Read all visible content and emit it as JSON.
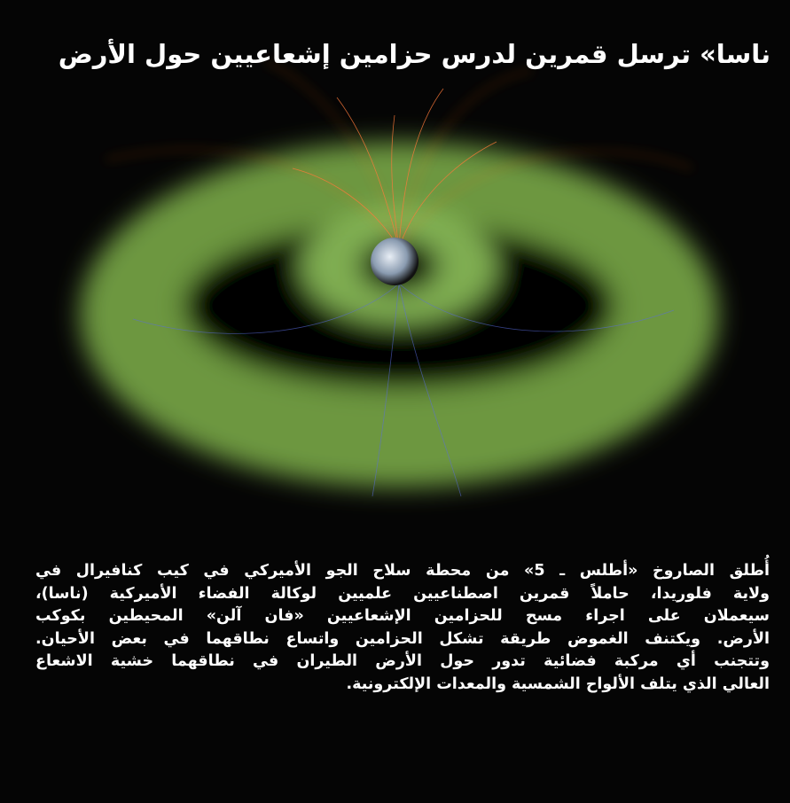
{
  "header": {
    "title": "ناسا» ترسل قمرين لدرس حزامين إشعاعيين حول الأرض"
  },
  "article": {
    "lines": [
      "أُطلق الصاروخ «أطلس ـ 5» من محطة سلاح الجو الأميركي في كيب كنافيرال في",
      "ولاية فلوريدا، حاملاً قمرين اصطناعيين علميين لوكالة الفضاء الأميركية (ناسا)،",
      "سيعملان على اجراء مسح للحزامين الإشعاعيين «فان آلن» المحيطين بكوكب",
      "الأرض. ويكتنف الغموض طريقة تشكل الحزامين واتساع نطاقهما في بعض الأحيان.",
      "وتتجنب أي مركبة فضائية تدور حول الأرض الطيران في نطاقهما خشية الاشعاع",
      "العالي الذي يتلف الألواح الشمسية والمعدات الإلكترونية."
    ]
  }
}
